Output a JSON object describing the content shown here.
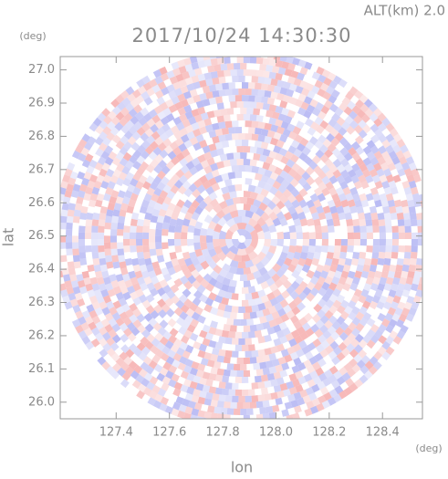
{
  "chart_data": {
    "type": "radar-ppi",
    "title": "2017/10/24 14:30:30",
    "subtitle": "ALT(km) 2.0",
    "x_label": "lon",
    "y_label": "lat",
    "x_unit": "(deg)",
    "y_unit": "(deg)",
    "xlim": [
      127.19,
      128.55
    ],
    "ylim": [
      25.95,
      27.04
    ],
    "xticks": [
      127.4,
      127.6,
      127.8,
      {
        "value": 128,
        "label": "128.0"
      },
      128.2,
      128.4
    ],
    "yticks": [
      {
        "value": 26,
        "label": "26.0"
      },
      26.1,
      26.2,
      26.3,
      26.4,
      26.5,
      26.6,
      26.7,
      26.8,
      26.9,
      {
        "value": 27,
        "label": "27.0"
      }
    ],
    "colors": [
      "#f5a9a9",
      "#aeb0f2"
    ]
  }
}
